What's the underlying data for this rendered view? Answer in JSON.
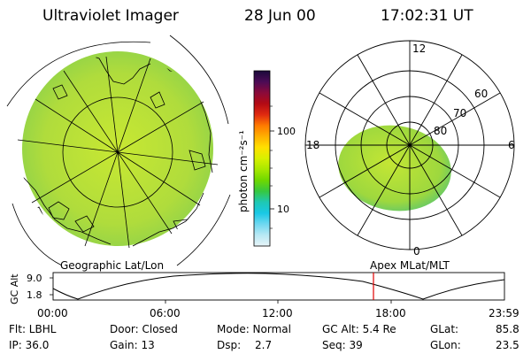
{
  "header": {
    "instrument": "Ultraviolet Imager",
    "date": "28 Jun 00",
    "time": "17:02:31 UT"
  },
  "colorbar": {
    "label": "photon cm⁻²s⁻¹",
    "ticks": [
      "100",
      "10"
    ],
    "colors": [
      "#1a0a3a",
      "#4b0b56",
      "#8a0a3a",
      "#b40a14",
      "#e02a10",
      "#ff7a00",
      "#ffb000",
      "#ffe000",
      "#d8f000",
      "#a8e800",
      "#6fd800",
      "#36c840",
      "#1ec8b4",
      "#19c8e6",
      "#6fd8f0",
      "#b8e8f4",
      "#e8f4f8"
    ]
  },
  "left_map": {
    "caption": "Geographic Lat/Lon",
    "fill": "#b8e03a"
  },
  "right_map": {
    "caption": "Apex MLat/MLT",
    "mlt_labels": {
      "top": "12",
      "left": "18",
      "right": "6",
      "bottom": "0"
    },
    "lat_labels": [
      "60",
      "70",
      "80"
    ],
    "fill": "#a6dd3a"
  },
  "timeline": {
    "ylabel": "GC Alt",
    "yticks": [
      "9.0",
      "1.8"
    ],
    "xticks": [
      "00:00",
      "06:00",
      "12:00",
      "18:00",
      "23:59"
    ],
    "marker_color": "#e00000"
  },
  "info": {
    "flt": "Flt: LBHL",
    "ip": "IP: 36.0",
    "door": "Door: Closed",
    "gain": "Gain: 13",
    "mode": "Mode: Normal",
    "dsp_label": "Dsp:",
    "dsp_value": "2.7",
    "gc_alt": "GC Alt: 5.4 Re",
    "seq": "Seq: 39",
    "glat_label": "GLat:",
    "glat_value": "85.8",
    "glon_label": "GLon:",
    "glon_value": "23.5"
  }
}
